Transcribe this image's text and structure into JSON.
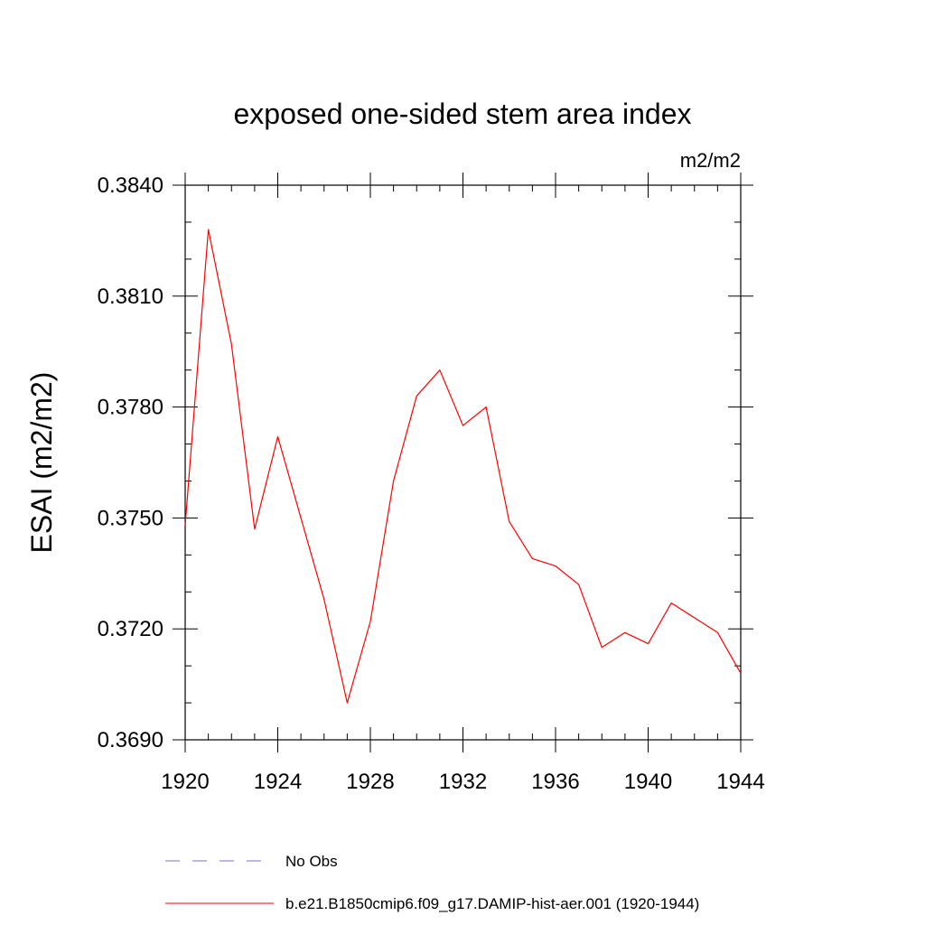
{
  "chart_data": {
    "type": "line",
    "title": "exposed one-sided stem area index",
    "units_label": "m2/m2",
    "xlabel": "",
    "ylabel": "ESAI  (m2/m2)",
    "xlim": [
      1920,
      1944
    ],
    "ylim": [
      0.369,
      0.384
    ],
    "x_ticks": [
      1920,
      1924,
      1928,
      1932,
      1936,
      1940,
      1944
    ],
    "x_tick_labels": [
      "1920",
      "1924",
      "1928",
      "1932",
      "1936",
      "1940",
      "1944"
    ],
    "y_ticks": [
      0.369,
      0.372,
      0.375,
      0.378,
      0.381,
      0.384
    ],
    "y_tick_labels": [
      "0.3690",
      "0.3720",
      "0.3750",
      "0.3780",
      "0.3810",
      "0.3840"
    ],
    "grid": false,
    "legend_position": "bottom",
    "series": [
      {
        "name": "b.e21.B1850cmip6.f09_g17.DAMIP-hist-aer.001 (1920-1944)",
        "color": "#ff0000",
        "dash": "solid",
        "x": [
          1920,
          1921,
          1922,
          1923,
          1924,
          1925,
          1926,
          1927,
          1928,
          1929,
          1930,
          1931,
          1932,
          1933,
          1934,
          1935,
          1936,
          1937,
          1938,
          1939,
          1940,
          1941,
          1942,
          1943,
          1944
        ],
        "y": [
          0.3748,
          0.3828,
          0.3797,
          0.3747,
          0.3772,
          0.375,
          0.3728,
          0.37,
          0.3722,
          0.376,
          0.3783,
          0.379,
          0.3775,
          0.378,
          0.3749,
          0.3739,
          0.3737,
          0.3732,
          0.3715,
          0.3719,
          0.3716,
          0.3727,
          0.3723,
          0.3719,
          0.3708
        ]
      },
      {
        "name": "No Obs",
        "color": "#7b6fd0",
        "dash": "dashed",
        "x": [],
        "y": []
      }
    ]
  }
}
